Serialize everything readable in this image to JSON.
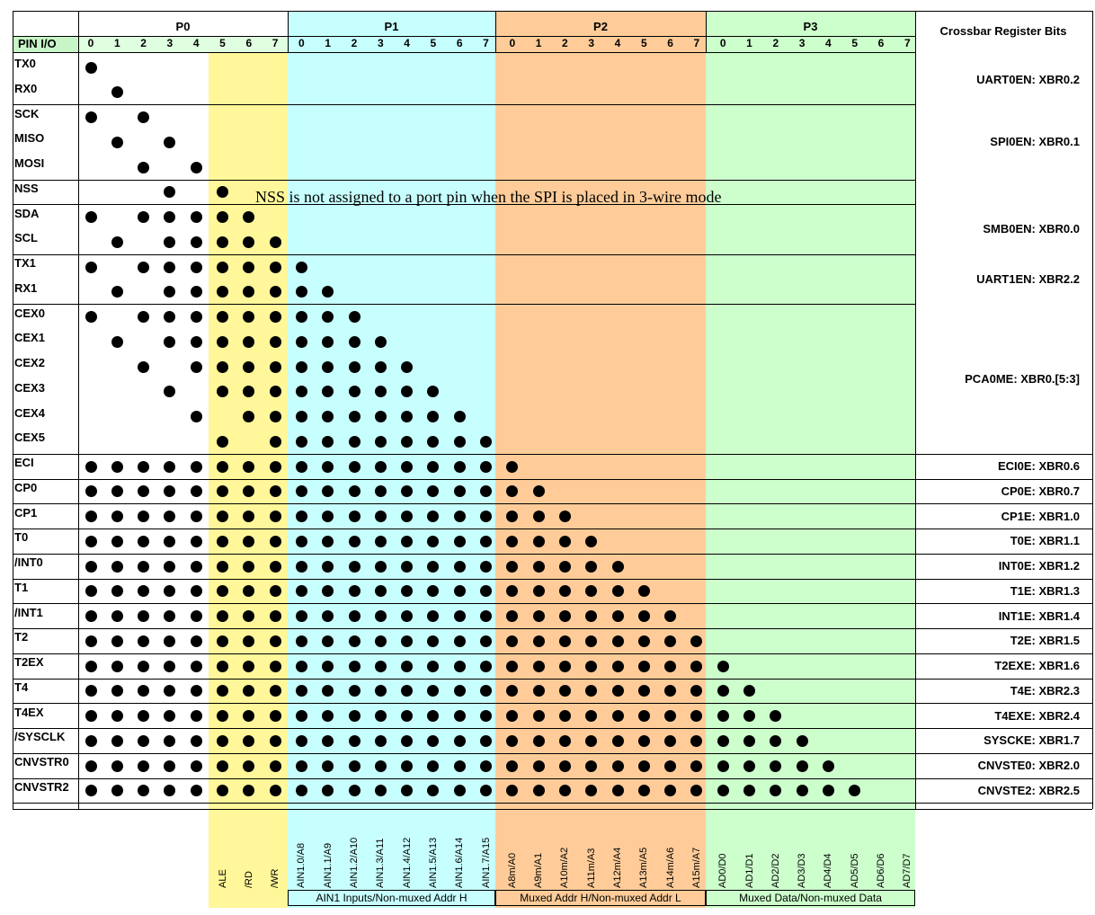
{
  "colors": {
    "p0_header": "#e0ffe0",
    "pin_io_header": "#c7f5c7",
    "p0_high": "#fff799",
    "p1": "#c7ffff",
    "p2": "#ffcc99",
    "p3": "#ccffcc"
  },
  "header": {
    "pin_io": "PIN I/O",
    "crossbar_title": "Crossbar Register Bits",
    "ports": [
      {
        "name": "P0"
      },
      {
        "name": "P1"
      },
      {
        "name": "P2"
      },
      {
        "name": "P3"
      }
    ],
    "bits": [
      "0",
      "1",
      "2",
      "3",
      "4",
      "5",
      "6",
      "7"
    ]
  },
  "note": "NSS is not assigned to a port pin when the SPI is placed in 3-wire mode",
  "rows": [
    {
      "pin": "TX0",
      "reg": "",
      "dots": [
        0
      ]
    },
    {
      "pin": "RX0",
      "reg": "",
      "dots": [
        1
      ]
    },
    {
      "pin": "SCK",
      "reg": "",
      "dots": [
        0,
        2
      ]
    },
    {
      "pin": "MISO",
      "reg": "",
      "dots": [
        1,
        3
      ]
    },
    {
      "pin": "MOSI",
      "reg": "",
      "dots": [
        2,
        4
      ]
    },
    {
      "pin": "NSS",
      "reg": "",
      "dots": [
        3,
        5
      ]
    },
    {
      "pin": "SDA",
      "reg": "",
      "dots": [
        0,
        2,
        3,
        4,
        5,
        6
      ]
    },
    {
      "pin": "SCL",
      "reg": "",
      "dots": [
        1,
        3,
        4,
        5,
        6,
        7
      ]
    },
    {
      "pin": "TX1",
      "reg": "",
      "dots": [
        0,
        2,
        3,
        4,
        5,
        6,
        7,
        8
      ]
    },
    {
      "pin": "RX1",
      "reg": "",
      "dots": [
        1,
        3,
        4,
        5,
        6,
        7,
        8,
        9
      ]
    },
    {
      "pin": "CEX0",
      "reg": "",
      "dots": [
        0,
        2,
        3,
        4,
        5,
        6,
        7,
        8,
        9,
        10
      ]
    },
    {
      "pin": "CEX1",
      "reg": "",
      "dots": [
        1,
        3,
        4,
        5,
        6,
        7,
        8,
        9,
        10,
        11
      ]
    },
    {
      "pin": "CEX2",
      "reg": "",
      "dots": [
        2,
        4,
        5,
        6,
        7,
        8,
        9,
        10,
        11,
        12
      ]
    },
    {
      "pin": "CEX3",
      "reg": "",
      "dots": [
        3,
        5,
        6,
        7,
        8,
        9,
        10,
        11,
        12,
        13
      ]
    },
    {
      "pin": "CEX4",
      "reg": "",
      "dots": [
        4,
        6,
        7,
        8,
        9,
        10,
        11,
        12,
        13,
        14
      ]
    },
    {
      "pin": "CEX5",
      "reg": "",
      "dots": [
        5,
        7,
        8,
        9,
        10,
        11,
        12,
        13,
        14,
        15
      ]
    },
    {
      "pin": "ECI",
      "reg": "ECI0E: XBR0.6",
      "dots": [
        0,
        1,
        2,
        3,
        4,
        5,
        6,
        7,
        8,
        9,
        10,
        11,
        12,
        13,
        14,
        15,
        16
      ]
    },
    {
      "pin": "CP0",
      "reg": "CP0E: XBR0.7",
      "dots": [
        0,
        1,
        2,
        3,
        4,
        5,
        6,
        7,
        8,
        9,
        10,
        11,
        12,
        13,
        14,
        15,
        16,
        17
      ]
    },
    {
      "pin": "CP1",
      "reg": "CP1E: XBR1.0",
      "dots": [
        0,
        1,
        2,
        3,
        4,
        5,
        6,
        7,
        8,
        9,
        10,
        11,
        12,
        13,
        14,
        15,
        16,
        17,
        18
      ]
    },
    {
      "pin": "T0",
      "reg": "T0E: XBR1.1",
      "dots": [
        0,
        1,
        2,
        3,
        4,
        5,
        6,
        7,
        8,
        9,
        10,
        11,
        12,
        13,
        14,
        15,
        16,
        17,
        18,
        19
      ]
    },
    {
      "pin": "/INT0",
      "reg": "INT0E: XBR1.2",
      "dots": [
        0,
        1,
        2,
        3,
        4,
        5,
        6,
        7,
        8,
        9,
        10,
        11,
        12,
        13,
        14,
        15,
        16,
        17,
        18,
        19,
        20
      ]
    },
    {
      "pin": "T1",
      "reg": "T1E: XBR1.3",
      "dots": [
        0,
        1,
        2,
        3,
        4,
        5,
        6,
        7,
        8,
        9,
        10,
        11,
        12,
        13,
        14,
        15,
        16,
        17,
        18,
        19,
        20,
        21
      ]
    },
    {
      "pin": "/INT1",
      "reg": "INT1E: XBR1.4",
      "dots": [
        0,
        1,
        2,
        3,
        4,
        5,
        6,
        7,
        8,
        9,
        10,
        11,
        12,
        13,
        14,
        15,
        16,
        17,
        18,
        19,
        20,
        21,
        22
      ]
    },
    {
      "pin": "T2",
      "reg": "T2E: XBR1.5",
      "dots": [
        0,
        1,
        2,
        3,
        4,
        5,
        6,
        7,
        8,
        9,
        10,
        11,
        12,
        13,
        14,
        15,
        16,
        17,
        18,
        19,
        20,
        21,
        22,
        23
      ]
    },
    {
      "pin": "T2EX",
      "reg": "T2EXE: XBR1.6",
      "dots": [
        0,
        1,
        2,
        3,
        4,
        5,
        6,
        7,
        8,
        9,
        10,
        11,
        12,
        13,
        14,
        15,
        16,
        17,
        18,
        19,
        20,
        21,
        22,
        23,
        24
      ]
    },
    {
      "pin": "T4",
      "reg": "T4E: XBR2.3",
      "dots": [
        0,
        1,
        2,
        3,
        4,
        5,
        6,
        7,
        8,
        9,
        10,
        11,
        12,
        13,
        14,
        15,
        16,
        17,
        18,
        19,
        20,
        21,
        22,
        23,
        24,
        25
      ]
    },
    {
      "pin": "T4EX",
      "reg": "T4EXE: XBR2.4",
      "dots": [
        0,
        1,
        2,
        3,
        4,
        5,
        6,
        7,
        8,
        9,
        10,
        11,
        12,
        13,
        14,
        15,
        16,
        17,
        18,
        19,
        20,
        21,
        22,
        23,
        24,
        25,
        26
      ]
    },
    {
      "pin": "/SYSCLK",
      "reg": "SYSCKE: XBR1.7",
      "dots": [
        0,
        1,
        2,
        3,
        4,
        5,
        6,
        7,
        8,
        9,
        10,
        11,
        12,
        13,
        14,
        15,
        16,
        17,
        18,
        19,
        20,
        21,
        22,
        23,
        24,
        25,
        26,
        27
      ]
    },
    {
      "pin": "CNVSTR0",
      "reg": "CNVSTE0: XBR2.0",
      "dots": [
        0,
        1,
        2,
        3,
        4,
        5,
        6,
        7,
        8,
        9,
        10,
        11,
        12,
        13,
        14,
        15,
        16,
        17,
        18,
        19,
        20,
        21,
        22,
        23,
        24,
        25,
        26,
        27,
        28
      ]
    },
    {
      "pin": "CNVSTR2",
      "reg": "CNVSTE2: XBR2.5",
      "dots": [
        0,
        1,
        2,
        3,
        4,
        5,
        6,
        7,
        8,
        9,
        10,
        11,
        12,
        13,
        14,
        15,
        16,
        17,
        18,
        19,
        20,
        21,
        22,
        23,
        24,
        25,
        26,
        27,
        28,
        29
      ]
    }
  ],
  "group_regs": [
    {
      "label": "UART0EN: XBR0.2"
    },
    {
      "label": "SPI0EN: XBR0.1"
    },
    {
      "label": "SMB0EN: XBR0.0"
    },
    {
      "label": "UART1EN: XBR2.2"
    },
    {
      "label": "PCA0ME: XBR0.[5:3]"
    }
  ],
  "bottom_labels": [
    "ALE",
    "/RD",
    "/WR",
    "AIN1.0/A8",
    "AIN1.1/A9",
    "AIN1.2/A10",
    "AIN1.3/A11",
    "AIN1.4/A12",
    "AIN1.5/A13",
    "AIN1.6/A14",
    "AIN1.7/A15",
    "A8m/A0",
    "A9m/A1",
    "A10m/A2",
    "A11m/A3",
    "A12m/A4",
    "A13m/A5",
    "A14m/A6",
    "A15m/A7",
    "AD0/D0",
    "AD1/D1",
    "AD2/D2",
    "AD3/D3",
    "AD4/D4",
    "AD5/D5",
    "AD6/D6",
    "AD7/D7"
  ],
  "group_footers": [
    {
      "label": "AIN1 Inputs/Non-muxed Addr H"
    },
    {
      "label": "Muxed Addr H/Non-muxed Addr L"
    },
    {
      "label": "Muxed Data/Non-muxed Data"
    }
  ]
}
